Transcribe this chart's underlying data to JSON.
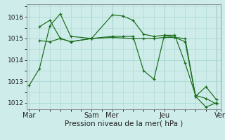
{
  "title": "",
  "xlabel": "Pression niveau de la mer( hPa )",
  "ylabel": "",
  "background_color": "#ceecea",
  "grid_color": "#a8d8d0",
  "line_color": "#1a6b1a",
  "ylim": [
    1011.7,
    1016.6
  ],
  "yticks": [
    1012,
    1013,
    1014,
    1015,
    1016
  ],
  "xlim": [
    -0.1,
    9.2
  ],
  "xtick_positions": [
    0,
    3.0,
    4.0,
    6.5,
    9.2
  ],
  "xtick_labels": [
    "Mar",
    "Sam",
    "Mer",
    "Jeu",
    "Ven"
  ],
  "lines": [
    {
      "x": [
        0.0,
        0.5,
        1.0,
        1.5,
        2.0,
        3.0,
        4.0,
        4.5,
        5.0,
        5.5,
        6.0,
        6.5,
        7.0,
        7.5,
        8.0,
        8.5,
        9.0
      ],
      "y": [
        1012.8,
        1013.6,
        1015.6,
        1016.15,
        1015.1,
        1015.0,
        1016.1,
        1016.05,
        1015.85,
        1015.2,
        1015.1,
        1015.15,
        1015.05,
        1014.85,
        1012.3,
        1011.8,
        1012.0
      ]
    },
    {
      "x": [
        0.5,
        1.0,
        1.5,
        2.0,
        3.0,
        4.0,
        4.5,
        5.0,
        5.5,
        6.0,
        6.5,
        7.0,
        7.5,
        8.0,
        8.5,
        9.0
      ],
      "y": [
        1015.55,
        1015.85,
        1015.0,
        1014.85,
        1015.0,
        1015.1,
        1015.1,
        1015.1,
        1013.5,
        1013.1,
        1015.15,
        1015.15,
        1013.85,
        1012.35,
        1012.2,
        1011.95
      ]
    },
    {
      "x": [
        0.5,
        1.0,
        1.5,
        2.0,
        3.0,
        4.0,
        5.0,
        5.5,
        6.0,
        6.5,
        7.0,
        7.5,
        8.0,
        8.5,
        9.0
      ],
      "y": [
        1014.9,
        1014.85,
        1015.0,
        1014.85,
        1015.0,
        1015.05,
        1015.0,
        1015.0,
        1015.0,
        1015.05,
        1015.05,
        1015.0,
        1012.3,
        1012.75,
        1012.15
      ]
    }
  ],
  "vlines": [
    3.0,
    4.0,
    6.5,
    9.0
  ],
  "vline_color": "#707070",
  "ytick_fontsize": 6.5,
  "xtick_fontsize": 7,
  "xlabel_fontsize": 7.5
}
